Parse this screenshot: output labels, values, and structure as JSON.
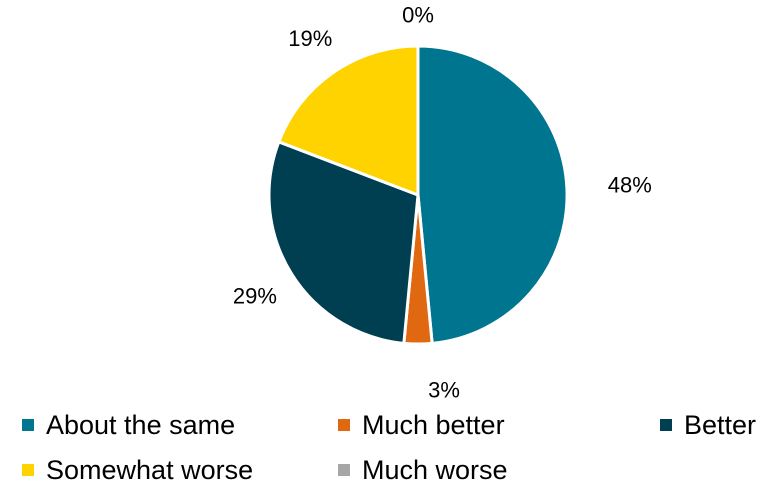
{
  "chart_data": {
    "type": "pie",
    "categories": [
      "About the same",
      "Much better",
      "Better",
      "Somewhat worse",
      "Much worse"
    ],
    "values": [
      48,
      3,
      29,
      19,
      0
    ],
    "labels": [
      "48%",
      "3%",
      "29%",
      "19%",
      "0%"
    ],
    "colors": [
      "#00758F",
      "#E06810",
      "#003E52",
      "#FFD300",
      "#A6A6A6"
    ],
    "legend": "bottom"
  }
}
